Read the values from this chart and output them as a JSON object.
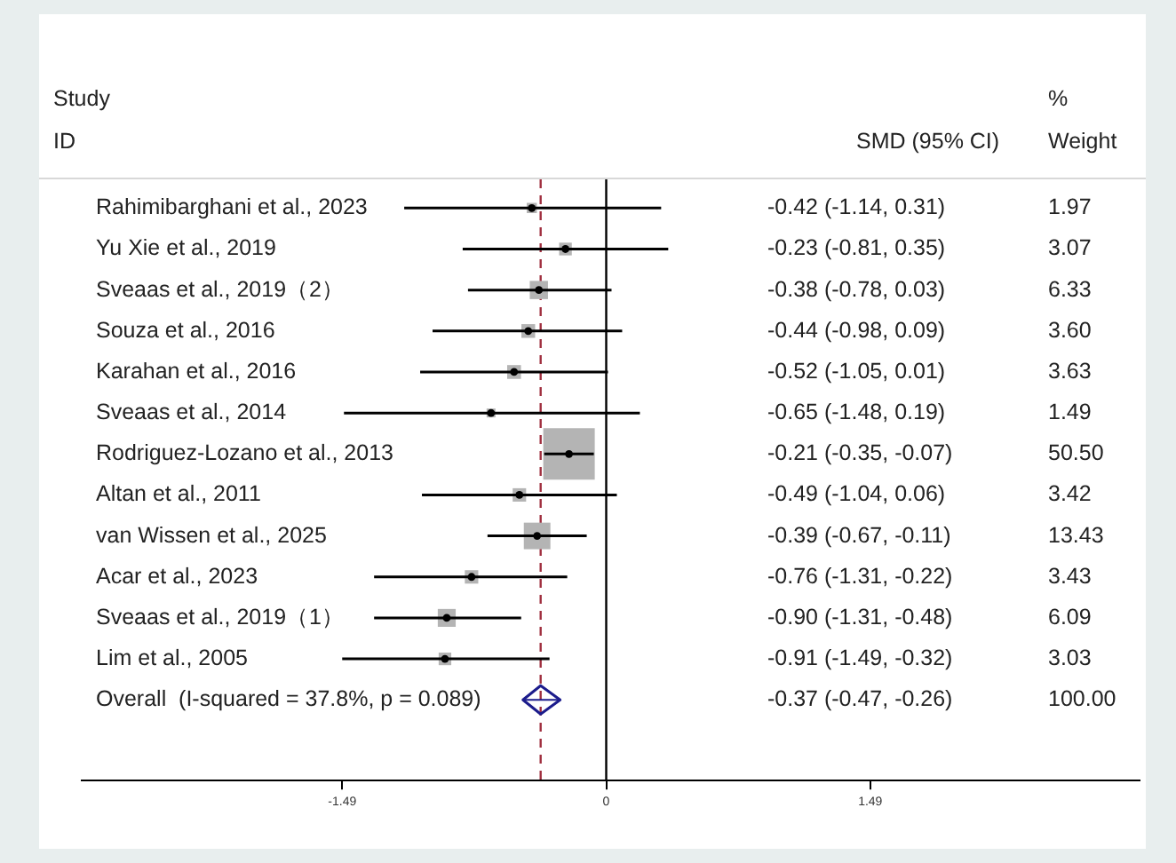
{
  "chart_data": {
    "type": "scatter",
    "categories": [
      "Rahimibarghani et al., 2023",
      "Yu Xie et al., 2019",
      "Sveaas et al., 2019（2）",
      "Souza et al., 2016",
      "Karahan et al., 2016",
      "Sveaas et al., 2014",
      "Rodriguez-Lozano et al., 2013",
      "Altan et al., 2011",
      "van Wissen et al., 2025",
      "Acar et al., 2023",
      "Sveaas et al., 2019（1）",
      "Lim et al., 2005",
      "Overall  (I-squared = 37.8%, p = 0.089)"
    ],
    "series": [
      {
        "color": "#b4b4b4",
        "marker": "square",
        "values": [
          -0.42,
          -0.23,
          -0.38,
          -0.44,
          -0.52,
          -0.65,
          -0.21,
          -0.49,
          -0.39,
          -0.76,
          -0.9,
          -0.91,
          null
        ],
        "errors": [
          [
            -1.14,
            0.31
          ],
          [
            -0.81,
            0.35
          ],
          [
            -0.78,
            0.03
          ],
          [
            -0.98,
            0.09
          ],
          [
            -1.05,
            0.01
          ],
          [
            -1.48,
            0.19
          ],
          [
            -0.35,
            -0.07
          ],
          [
            -1.04,
            0.06
          ],
          [
            -0.67,
            -0.11
          ],
          [
            -1.31,
            -0.22
          ],
          [
            -1.31,
            -0.48
          ],
          [
            -1.49,
            -0.32
          ],
          null
        ],
        "sizes": [
          0.039,
          0.061,
          0.125,
          0.071,
          0.072,
          0.03,
          1,
          0.068,
          0.266,
          0.068,
          0.121,
          0.06,
          null
        ]
      },
      {
        "color": "#1c1c8c",
        "marker": "diamond",
        "values": [
          null,
          null,
          null,
          null,
          null,
          null,
          null,
          null,
          null,
          null,
          null,
          null,
          -0.37
        ],
        "errors": [
          null,
          null,
          null,
          null,
          null,
          null,
          null,
          null,
          null,
          null,
          null,
          null,
          [
            -0.47,
            -0.26
          ]
        ]
      }
    ],
    "orientation": "horizontal",
    "xlim": [
      -2.96,
      3.01
    ],
    "xticks": [
      -1.49,
      0,
      1.49
    ],
    "ref_lines": [
      {
        "axis": "x",
        "value": 0,
        "color": "#000000"
      },
      {
        "axis": "x",
        "value": -0.37,
        "color": "#a03040",
        "line_style": "dashed"
      }
    ],
    "annotations": [
      "Study",
      "ID",
      "SMD (95% CI)",
      "%",
      "Weight",
      "-0.42 (-1.14, 0.31)",
      "-0.23 (-0.81, 0.35)",
      "-0.38 (-0.78, 0.03)",
      "-0.44 (-0.98, 0.09)",
      "-0.52 (-1.05, 0.01)",
      "-0.65 (-1.48, 0.19)",
      "-0.21 (-0.35, -0.07)",
      "-0.49 (-1.04, 0.06)",
      "-0.39 (-0.67, -0.11)",
      "-0.76 (-1.31, -0.22)",
      "-0.90 (-1.31, -0.48)",
      "-0.91 (-1.49, -0.32)",
      "-0.37 (-0.47, -0.26)",
      "1.97",
      "3.07",
      "6.33",
      "3.60",
      "3.63",
      "1.49",
      "50.50",
      "3.42",
      "13.43",
      "3.43",
      "6.09",
      "3.03",
      "100.00"
    ],
    "grid": false,
    "legend": false
  }
}
